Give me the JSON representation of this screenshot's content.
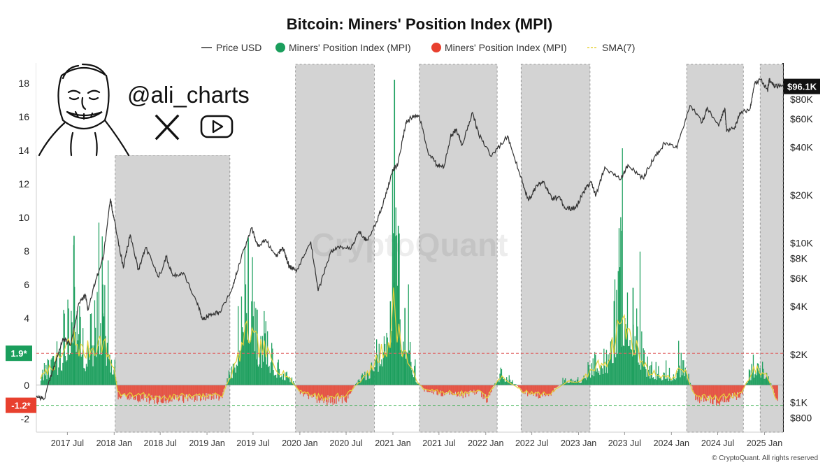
{
  "chart_data": {
    "type": "bar",
    "title": "Bitcoin: Miners' Position Index (MPI)",
    "legend": [
      {
        "name": "Price USD",
        "color": "#333333",
        "marker": "line"
      },
      {
        "name": "Miners' Position Index (MPI)",
        "color": "#1a9e5c",
        "marker": "dot"
      },
      {
        "name": "Miners' Position Index (MPI)",
        "color": "#e8402e",
        "marker": "dot"
      },
      {
        "name": "SMA(7)",
        "color": "#e7d23a",
        "marker": "dash"
      }
    ],
    "left_axis": {
      "ylim": [
        -2.8,
        19.2
      ],
      "ticks": [
        "18",
        "16",
        "14",
        "12",
        "10",
        "8",
        "6",
        "4",
        "2",
        "0",
        "-2"
      ],
      "tick_values": [
        18,
        16,
        14,
        12,
        10,
        8,
        6,
        4,
        2,
        0,
        -2
      ]
    },
    "right_axis": {
      "scale": "log",
      "ylim": [
        650,
        135000
      ],
      "ticks": [
        "$80K",
        "$60K",
        "$40K",
        "$20K",
        "$10K",
        "$8K",
        "$6K",
        "$4K",
        "$2K",
        "$1K",
        "$800"
      ],
      "tick_values": [
        80000,
        60000,
        40000,
        20000,
        10000,
        8000,
        6000,
        4000,
        2000,
        1000,
        800
      ],
      "current_label": "$96.1K",
      "current_value": 96100
    },
    "x_axis": {
      "range": [
        "2017-03-01",
        "2025-03-15"
      ],
      "ticks": [
        "2017 Jul",
        "2018 Jan",
        "2018 Jul",
        "2019 Jan",
        "2019 Jul",
        "2020 Jan",
        "2020 Jul",
        "2021 Jan",
        "2021 Jul",
        "2022 Jan",
        "2022 Jul",
        "2023 Jan",
        "2023 Jul",
        "2024 Jan",
        "2024 Jul",
        "2025 Jan"
      ],
      "tick_dates": [
        "2017-07-01",
        "2018-01-01",
        "2018-07-01",
        "2019-01-01",
        "2019-07-01",
        "2020-01-01",
        "2020-07-01",
        "2021-01-01",
        "2021-07-01",
        "2022-01-01",
        "2022-07-01",
        "2023-01-01",
        "2023-07-01",
        "2024-01-01",
        "2024-07-01",
        "2025-01-01"
      ]
    },
    "thresholds": [
      {
        "label": "1.9*",
        "value": 1.9,
        "color": "#1a9e5c",
        "line_color": "#e06060"
      },
      {
        "label": "-1.2*",
        "value": -1.2,
        "color": "#e8402e",
        "line_color": "#3cb050"
      }
    ],
    "shaded_periods": [
      {
        "start": "2018-01-05",
        "end": "2019-04-01"
      },
      {
        "start": "2019-12-15",
        "end": "2020-10-20"
      },
      {
        "start": "2021-04-15",
        "end": "2022-02-15"
      },
      {
        "start": "2022-05-20",
        "end": "2023-02-15"
      },
      {
        "start": "2024-03-01",
        "end": "2024-10-10"
      },
      {
        "start": "2024-12-15",
        "end": "2025-03-15"
      }
    ],
    "price_series": {
      "name": "Price USD",
      "x": [
        "2017-03-01",
        "2017-04-01",
        "2017-05-15",
        "2017-06-15",
        "2017-07-15",
        "2017-08-15",
        "2017-09-10",
        "2017-09-20",
        "2017-10-20",
        "2017-11-20",
        "2017-12-17",
        "2018-01-01",
        "2018-02-06",
        "2018-03-05",
        "2018-04-06",
        "2018-05-05",
        "2018-06-25",
        "2018-07-25",
        "2018-08-20",
        "2018-10-01",
        "2018-11-20",
        "2018-12-15",
        "2019-01-15",
        "2019-02-20",
        "2019-04-10",
        "2019-05-15",
        "2019-06-26",
        "2019-07-20",
        "2019-08-20",
        "2019-09-30",
        "2019-10-26",
        "2019-11-20",
        "2019-12-18",
        "2020-02-13",
        "2020-03-13",
        "2020-04-30",
        "2020-06-01",
        "2020-07-20",
        "2020-08-20",
        "2020-09-20",
        "2020-10-25",
        "2020-11-30",
        "2020-12-31",
        "2021-01-20",
        "2021-02-21",
        "2021-03-13",
        "2021-04-14",
        "2021-05-19",
        "2021-06-22",
        "2021-07-20",
        "2021-08-15",
        "2021-09-07",
        "2021-09-29",
        "2021-11-10",
        "2021-12-04",
        "2022-01-24",
        "2022-03-28",
        "2022-05-12",
        "2022-06-18",
        "2022-07-20",
        "2022-08-15",
        "2022-09-20",
        "2022-10-20",
        "2022-11-09",
        "2022-12-20",
        "2023-01-20",
        "2023-02-20",
        "2023-03-10",
        "2023-04-14",
        "2023-06-15",
        "2023-07-14",
        "2023-09-11",
        "2023-10-25",
        "2023-12-05",
        "2024-01-23",
        "2024-03-14",
        "2024-05-01",
        "2024-05-21",
        "2024-07-05",
        "2024-07-29",
        "2024-08-05",
        "2024-09-06",
        "2024-09-27",
        "2024-11-05",
        "2024-11-22",
        "2024-12-17",
        "2025-01-13",
        "2025-01-20",
        "2025-02-10",
        "2025-03-15"
      ],
      "values": [
        1100,
        1050,
        1800,
        2500,
        2300,
        4200,
        4700,
        3800,
        5800,
        8200,
        19000,
        14000,
        7000,
        11300,
        6800,
        9400,
        6100,
        8200,
        6200,
        6500,
        4300,
        3300,
        3600,
        3700,
        5200,
        8000,
        12500,
        9500,
        10500,
        8200,
        9400,
        7200,
        6600,
        10200,
        5000,
        8700,
        9500,
        9200,
        11800,
        10400,
        13000,
        19000,
        29000,
        31000,
        57000,
        61000,
        63000,
        37000,
        31000,
        29800,
        46000,
        52000,
        41000,
        66000,
        48000,
        35000,
        47000,
        28000,
        18500,
        23000,
        24300,
        19000,
        19300,
        16500,
        16500,
        21000,
        24000,
        20000,
        30000,
        25000,
        31000,
        25500,
        34500,
        42000,
        39500,
        73000,
        57000,
        71000,
        54000,
        70000,
        50000,
        53000,
        66000,
        69500,
        99000,
        106000,
        91000,
        106000,
        96000,
        96100
      ],
      "color": "#333333"
    },
    "mpi_series": {
      "name": "Miners' Position Index (MPI)",
      "x": [
        "2017-03-15",
        "2017-06-01",
        "2017-07-25",
        "2017-09-01",
        "2017-11-15",
        "2018-01-01",
        "2018-01-15",
        "2018-06-15",
        "2019-03-01",
        "2019-04-15",
        "2019-06-10",
        "2019-07-15",
        "2019-08-20",
        "2019-09-25",
        "2019-11-10",
        "2020-01-01",
        "2020-04-15",
        "2020-07-01",
        "2020-10-01",
        "2020-11-15",
        "2020-12-20",
        "2021-01-05",
        "2021-01-20",
        "2021-02-15",
        "2021-04-01",
        "2021-05-01",
        "2021-07-01",
        "2021-10-01",
        "2021-12-01",
        "2022-01-05",
        "2022-03-01",
        "2022-06-01",
        "2022-09-01",
        "2022-11-15",
        "2023-01-10",
        "2023-03-01",
        "2023-05-01",
        "2023-06-15",
        "2023-08-01",
        "2023-10-01",
        "2024-01-01",
        "2024-02-15",
        "2024-04-01",
        "2024-07-01",
        "2024-10-01",
        "2024-11-20",
        "2025-01-10",
        "2025-02-15"
      ],
      "values": [
        0.8,
        2.6,
        8.9,
        3.0,
        6.0,
        1.5,
        -0.7,
        -0.9,
        -0.7,
        2.0,
        8.8,
        4.5,
        3.7,
        1.8,
        1.0,
        -0.5,
        -1.0,
        -0.8,
        1.5,
        3.8,
        5.0,
        18.2,
        9.5,
        4.6,
        0.5,
        -0.3,
        -0.5,
        -0.6,
        -0.4,
        -0.9,
        1.0,
        -0.5,
        -0.7,
        0.5,
        0.4,
        2.0,
        3.0,
        9.2,
        5.8,
        1.5,
        0.8,
        2.0,
        -0.8,
        -1.0,
        -0.6,
        1.8,
        1.0,
        -1.0
      ],
      "positive_color": "#1a9e5c",
      "negative_color": "#e8402e"
    },
    "sma_series": {
      "name": "SMA(7)",
      "x": [
        "2017-03-15",
        "2017-06-01",
        "2017-07-25",
        "2017-09-01",
        "2017-11-15",
        "2018-01-01",
        "2018-01-15",
        "2018-06-15",
        "2019-03-01",
        "2019-04-15",
        "2019-06-10",
        "2019-07-15",
        "2019-08-20",
        "2019-09-25",
        "2019-11-10",
        "2020-01-01",
        "2020-04-15",
        "2020-07-01",
        "2020-10-01",
        "2020-11-15",
        "2020-12-20",
        "2021-01-05",
        "2021-01-20",
        "2021-02-15",
        "2021-04-01",
        "2021-05-01",
        "2021-07-01",
        "2021-10-01",
        "2021-12-01",
        "2022-01-05",
        "2022-03-01",
        "2022-06-01",
        "2022-09-01",
        "2022-11-15",
        "2023-01-10",
        "2023-03-01",
        "2023-05-01",
        "2023-06-15",
        "2023-08-01",
        "2023-10-01",
        "2024-01-01",
        "2024-02-15",
        "2024-04-01",
        "2024-07-01",
        "2024-10-01",
        "2024-11-20",
        "2025-01-10",
        "2025-02-15"
      ],
      "values": [
        0.4,
        1.6,
        2.8,
        1.9,
        2.6,
        1.0,
        -0.5,
        -0.7,
        -0.6,
        0.9,
        3.2,
        2.4,
        2.0,
        1.1,
        0.6,
        -0.4,
        -0.8,
        -0.6,
        0.8,
        1.9,
        2.6,
        4.8,
        3.2,
        2.0,
        0.3,
        -0.2,
        -0.4,
        -0.5,
        -0.3,
        -0.7,
        0.5,
        -0.4,
        -0.6,
        0.2,
        0.2,
        1.0,
        1.6,
        4.0,
        2.6,
        0.8,
        0.4,
        1.1,
        -0.6,
        -0.8,
        -0.5,
        1.0,
        0.6,
        -0.8
      ],
      "color": "#e7d23a"
    }
  },
  "branding": {
    "handle": "@ali_charts",
    "icons": [
      "cartoon-face-icon",
      "x-logo-icon",
      "youtube-icon"
    ],
    "watermark": "CryptoQuant",
    "footer": "© CryptoQuant. All rights reserved"
  }
}
